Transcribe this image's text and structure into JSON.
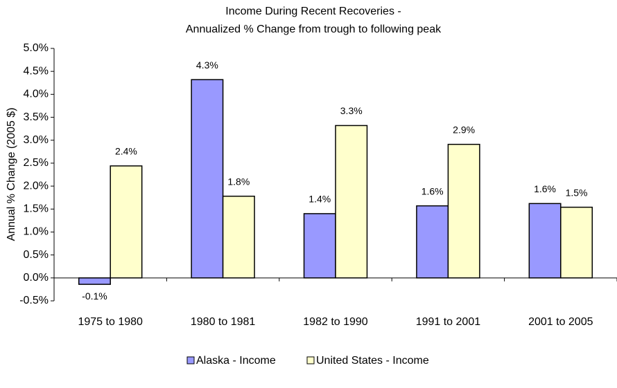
{
  "chart_data": {
    "type": "bar",
    "title": [
      "Income During Recent Recoveries -",
      "Annualized % Change from trough to following peak"
    ],
    "y_label": "Annual % Change (2005 $)",
    "categories": [
      "1975 to 1980",
      "1980 to 1981",
      "1982 to 1990",
      "1991 to 2001",
      "2001 to 2005"
    ],
    "series": [
      {
        "name": "Alaska - Income",
        "color": "#9999ff",
        "values": [
          -0.14,
          4.32,
          1.4,
          1.57,
          1.62
        ],
        "value_labels": [
          "-0.1%",
          "4.3%",
          "1.4%",
          "1.6%",
          "1.6%"
        ]
      },
      {
        "name": "United States - Income",
        "color": "#ffffcc",
        "values": [
          2.44,
          1.78,
          3.32,
          2.91,
          1.54
        ],
        "value_labels": [
          "2.4%",
          "1.8%",
          "3.3%",
          "2.9%",
          "1.5%"
        ]
      }
    ],
    "ylim": [
      -0.5,
      5.0
    ],
    "yticks": [
      {
        "value": -0.5,
        "label": "-0.5%"
      },
      {
        "value": 0,
        "label": "0.0%"
      },
      {
        "value": 0.5,
        "label": "0.5%"
      },
      {
        "value": 1.0,
        "label": "1.0%"
      },
      {
        "value": 1.5,
        "label": "1.5%"
      },
      {
        "value": 2.0,
        "label": "2.0%"
      },
      {
        "value": 2.5,
        "label": "2.5%"
      },
      {
        "value": 3.0,
        "label": "3.0%"
      },
      {
        "value": 3.5,
        "label": "3.5%"
      },
      {
        "value": 4.0,
        "label": "4.0%"
      },
      {
        "value": 4.5,
        "label": "4.5%"
      },
      {
        "value": 5.0,
        "label": "5.0%"
      }
    ],
    "legend": "bottom"
  }
}
